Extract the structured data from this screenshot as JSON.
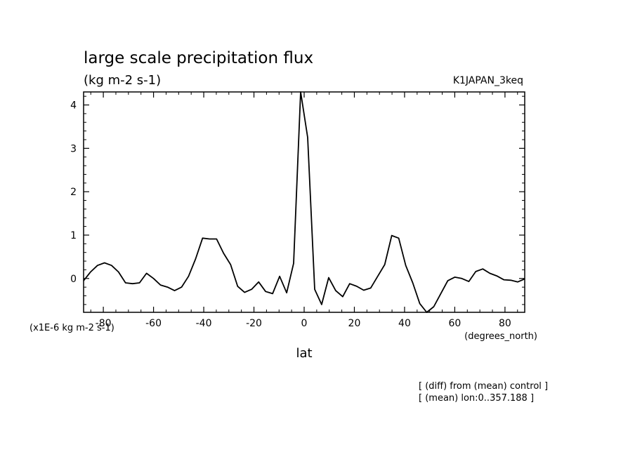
{
  "chart_data": {
    "type": "line",
    "title": "large scale precipitation flux",
    "units_label": "(kg m-2 s-1)",
    "experiment": "K1JAPAN_3keq",
    "y_scale_label": "(x1E-6 kg m-2 s-1)",
    "xlabel": "lat",
    "x_units": "(degrees_north)",
    "notes": [
      "[ (diff) from (mean) control ]",
      "[ (mean) lon:0..357.188 ]"
    ],
    "xlim": [
      -87.8638,
      87.8638
    ],
    "ylim": [
      -0.78,
      4.3
    ],
    "x_ticks": [
      -80,
      -60,
      -40,
      -20,
      0,
      20,
      40,
      60,
      80
    ],
    "y_ticks": [
      0,
      1,
      2,
      3,
      4
    ],
    "grid": false,
    "series": [
      {
        "x": [
          -87.86,
          -85.1,
          -82.31,
          -79.53,
          -76.74,
          -73.95,
          -71.16,
          -68.37,
          -65.58,
          -62.79,
          -60.0,
          -57.21,
          -54.42,
          -51.63,
          -48.84,
          -46.05,
          -43.26,
          -40.47,
          -37.67,
          -34.88,
          -32.09,
          -29.3,
          -26.51,
          -23.72,
          -20.93,
          -18.14,
          -15.35,
          -12.56,
          -9.77,
          -6.98,
          -4.19,
          -1.4,
          1.4,
          4.19,
          6.98,
          9.77,
          12.56,
          15.35,
          18.14,
          20.93,
          23.72,
          26.51,
          29.3,
          32.09,
          34.88,
          37.67,
          40.47,
          43.26,
          46.05,
          48.84,
          51.63,
          54.42,
          57.21,
          60.0,
          62.79,
          65.58,
          68.37,
          71.16,
          73.95,
          76.74,
          79.53,
          82.31,
          85.1,
          87.86
        ],
        "values": [
          -0.05,
          0.15,
          0.3,
          0.36,
          0.3,
          0.15,
          -0.1,
          -0.12,
          -0.1,
          0.12,
          0.0,
          -0.15,
          -0.2,
          -0.28,
          -0.2,
          0.05,
          0.45,
          0.93,
          0.91,
          0.91,
          0.58,
          0.32,
          -0.18,
          -0.32,
          -0.25,
          -0.08,
          -0.3,
          -0.35,
          0.05,
          -0.33,
          0.35,
          4.3,
          3.25,
          -0.25,
          -0.6,
          0.02,
          -0.28,
          -0.42,
          -0.12,
          -0.18,
          -0.27,
          -0.22,
          0.05,
          0.32,
          0.99,
          0.93,
          0.3,
          -0.1,
          -0.58,
          -0.78,
          -0.65,
          -0.35,
          -0.05,
          0.03,
          0.0,
          -0.07,
          0.16,
          0.22,
          0.12,
          0.06,
          -0.03,
          -0.04,
          -0.08,
          -0.01
        ]
      }
    ]
  }
}
